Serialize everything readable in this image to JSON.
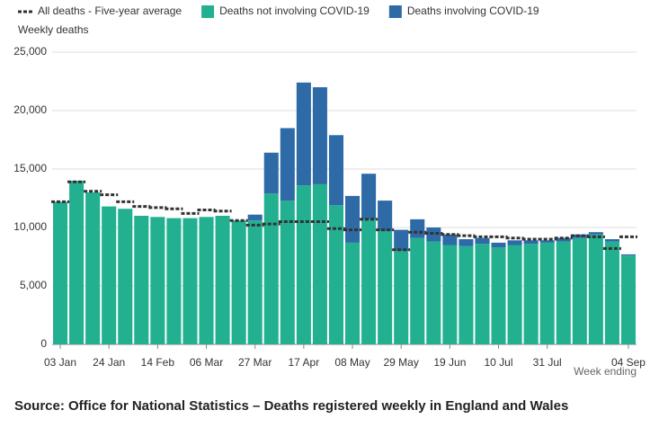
{
  "chart_data": {
    "type": "bar",
    "stacked": true,
    "y_label": "Weekly deaths",
    "x_label": "Week ending",
    "source": "Source: Office for National Statistics – Deaths registered weekly in England and Wales",
    "categories": [
      "03 Jan",
      null,
      null,
      "24 Jan",
      null,
      null,
      "14 Feb",
      null,
      null,
      "06 Mar",
      null,
      null,
      "27 Mar",
      null,
      null,
      "17 Apr",
      null,
      null,
      "08 May",
      null,
      null,
      "29 May",
      null,
      null,
      "19 Jun",
      null,
      null,
      "10 Jul",
      null,
      null,
      "31 Jul",
      null,
      null,
      null,
      null,
      "04 Sep"
    ],
    "series": [
      {
        "name": "Deaths not involving COVID-19",
        "color": "#23b090",
        "values": [
          12200,
          14000,
          13000,
          11800,
          11600,
          11000,
          10900,
          10800,
          10800,
          10900,
          11000,
          10600,
          10600,
          12900,
          12300,
          13600,
          13700,
          11900,
          8700,
          10700,
          9700,
          8000,
          9100,
          8800,
          8500,
          8400,
          8600,
          8300,
          8500,
          8600,
          8700,
          8800,
          9100,
          9400,
          8800,
          7600
        ]
      },
      {
        "name": "Deaths involving COVID-19",
        "color": "#2e6aa6",
        "values": [
          0,
          0,
          0,
          0,
          0,
          0,
          0,
          0,
          0,
          0,
          0,
          0,
          500,
          3500,
          6200,
          8800,
          8300,
          6000,
          4000,
          3900,
          2600,
          1800,
          1600,
          1200,
          900,
          600,
          500,
          400,
          400,
          300,
          200,
          300,
          300,
          200,
          200,
          100
        ]
      }
    ],
    "average": {
      "name": "All deaths - Five-year average",
      "color": "#333333",
      "values": [
        12200,
        13900,
        13100,
        12800,
        12200,
        11800,
        11700,
        11600,
        11200,
        11500,
        11400,
        10600,
        10200,
        10300,
        10500,
        10500,
        10500,
        9900,
        9800,
        10700,
        9800,
        8100,
        9600,
        9500,
        9400,
        9300,
        9200,
        9200,
        9100,
        9000,
        9000,
        9100,
        9300,
        9200,
        8200,
        9200
      ]
    },
    "ylim": [
      0,
      25000
    ],
    "yticks": [
      0,
      {
        "value": 5000,
        "label": "5,000"
      },
      {
        "value": 10000,
        "label": "10,000"
      },
      {
        "value": 15000,
        "label": "15,000"
      },
      {
        "value": 20000,
        "label": "20,000"
      },
      {
        "value": 25000,
        "label": "25,000"
      }
    ],
    "grid": true
  }
}
